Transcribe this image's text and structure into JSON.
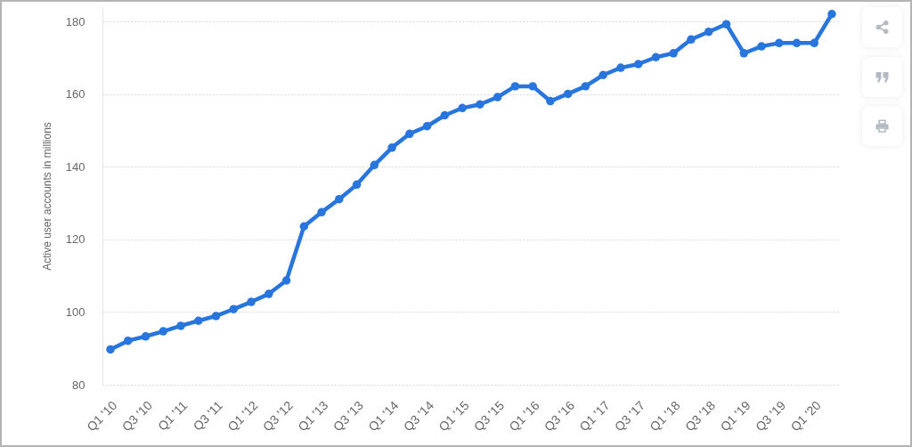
{
  "chart_data": {
    "type": "line",
    "ylabel": "Active user accounts in millions",
    "categories": [
      "Q1 '10",
      null,
      "Q3 '10",
      null,
      "Q1 '11",
      null,
      "Q3 '11",
      null,
      "Q1 '12",
      null,
      "Q3 '12",
      null,
      "Q1 '13",
      null,
      "Q3 '13",
      null,
      "Q1 '14",
      null,
      "Q3 '14",
      null,
      "Q1 '15",
      null,
      "Q3 '15",
      null,
      "Q1 '16",
      null,
      "Q3 '16",
      null,
      "Q1 '17",
      null,
      "Q3 '17",
      null,
      "Q1 '18",
      null,
      "Q3 '18",
      null,
      "Q1 '19",
      null,
      "Q3 '19",
      null,
      "Q1 '20",
      null
    ],
    "values": [
      89.7,
      92.1,
      93.3,
      94.7,
      96.2,
      97.6,
      98.9,
      100.8,
      102.8,
      105,
      108.7,
      123.6,
      127.5,
      131.1,
      135.1,
      140.5,
      145.3,
      149.1,
      151.2,
      154.2,
      156.2,
      157.2,
      159.2,
      162.2,
      162.2,
      158.1,
      160.1,
      162.2,
      165.3,
      167.3,
      168.3,
      170.2,
      171.3,
      175.1,
      177.2,
      179.3,
      171.3,
      173.2,
      174.1,
      174.1,
      174.1,
      182.1
    ],
    "color": "#2876dd",
    "ylim": [
      80,
      184
    ],
    "yticks": [
      80,
      100,
      120,
      140,
      160,
      180
    ],
    "grid": "y",
    "marker": "circle",
    "line_style": "solid"
  }
}
